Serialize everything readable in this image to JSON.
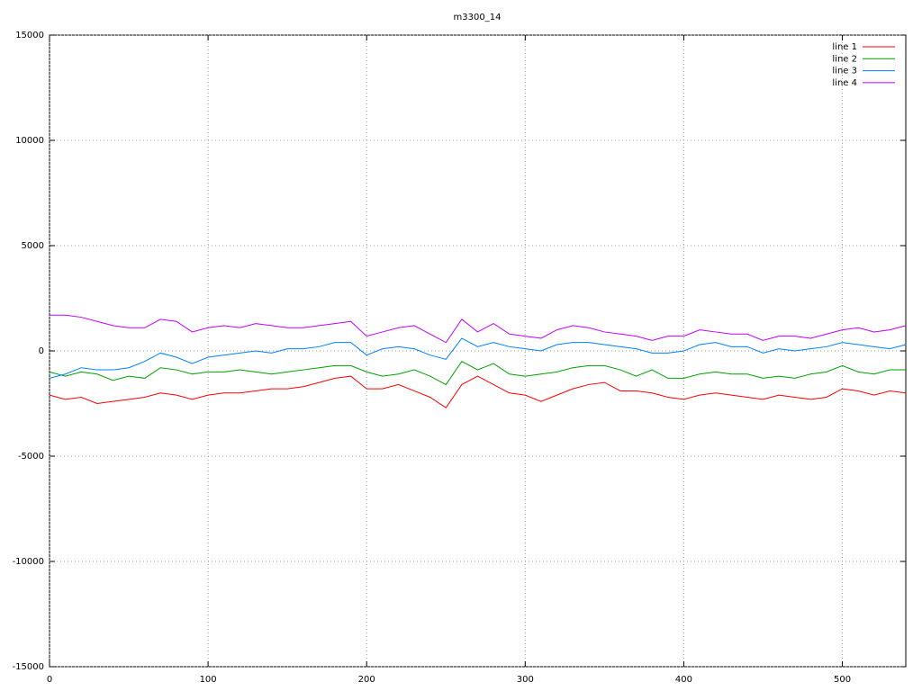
{
  "chart_data": {
    "type": "line",
    "title": "m3300_14",
    "x": [
      0,
      10,
      20,
      30,
      40,
      50,
      60,
      70,
      80,
      90,
      100,
      110,
      120,
      130,
      140,
      150,
      160,
      170,
      180,
      190,
      200,
      210,
      220,
      230,
      240,
      250,
      260,
      270,
      280,
      290,
      300,
      310,
      320,
      330,
      340,
      350,
      360,
      370,
      380,
      390,
      400,
      410,
      420,
      430,
      440,
      450,
      460,
      470,
      480,
      490,
      500,
      510,
      520,
      530,
      540
    ],
    "series": [
      {
        "name": "line 1",
        "color": "#ff0000",
        "values": [
          -2100,
          -2300,
          -2200,
          -2500,
          -2400,
          -2300,
          -2200,
          -2000,
          -2100,
          -2300,
          -2100,
          -2000,
          -2000,
          -1900,
          -1800,
          -1800,
          -1700,
          -1500,
          -1300,
          -1200,
          -1800,
          -1800,
          -1600,
          -1900,
          -2200,
          -2700,
          -1600,
          -1200,
          -1600,
          -2000,
          -2100,
          -2400,
          -2100,
          -1800,
          -1600,
          -1500,
          -1900,
          -1900,
          -2000,
          -2200,
          -2300,
          -2100,
          -2000,
          -2100,
          -2200,
          -2300,
          -2100,
          -2200,
          -2300,
          -2200,
          -1800,
          -1900,
          -2100,
          -1900,
          -2000
        ]
      },
      {
        "name": "line 2",
        "color": "#00a000",
        "values": [
          -1000,
          -1200,
          -1000,
          -1100,
          -1400,
          -1200,
          -1300,
          -800,
          -900,
          -1100,
          -1000,
          -1000,
          -900,
          -1000,
          -1100,
          -1000,
          -900,
          -800,
          -700,
          -700,
          -1000,
          -1200,
          -1100,
          -900,
          -1200,
          -1600,
          -500,
          -900,
          -600,
          -1100,
          -1200,
          -1100,
          -1000,
          -800,
          -700,
          -700,
          -900,
          -1200,
          -900,
          -1300,
          -1300,
          -1100,
          -1000,
          -1100,
          -1100,
          -1300,
          -1200,
          -1300,
          -1100,
          -1000,
          -700,
          -1000,
          -1100,
          -900,
          -900
        ]
      },
      {
        "name": "line 3",
        "color": "#0080ff",
        "values": [
          -1300,
          -1100,
          -800,
          -900,
          -900,
          -800,
          -500,
          -100,
          -300,
          -600,
          -300,
          -200,
          -100,
          0,
          -100,
          100,
          100,
          200,
          400,
          400,
          -200,
          100,
          200,
          100,
          -200,
          -400,
          600,
          200,
          400,
          200,
          100,
          0,
          300,
          400,
          400,
          300,
          200,
          100,
          -100,
          -100,
          0,
          300,
          400,
          200,
          200,
          -100,
          100,
          0,
          100,
          200,
          400,
          300,
          200,
          100,
          300
        ]
      },
      {
        "name": "line 4",
        "color": "#c000ff",
        "values": [
          1700,
          1700,
          1600,
          1400,
          1200,
          1100,
          1100,
          1500,
          1400,
          900,
          1100,
          1200,
          1100,
          1300,
          1200,
          1100,
          1100,
          1200,
          1300,
          1400,
          700,
          900,
          1100,
          1200,
          800,
          400,
          1500,
          900,
          1300,
          800,
          700,
          600,
          1000,
          1200,
          1100,
          900,
          800,
          700,
          500,
          700,
          700,
          1000,
          900,
          800,
          800,
          500,
          700,
          700,
          600,
          800,
          1000,
          1100,
          900,
          1000,
          1200
        ]
      }
    ],
    "xlim": [
      0,
      540
    ],
    "xticks": [
      0,
      100,
      200,
      300,
      400,
      500
    ],
    "ylim": [
      -15000,
      15000
    ],
    "yticks": [
      -15000,
      -10000,
      -5000,
      0,
      5000,
      10000,
      15000
    ],
    "grid": true,
    "legend": "top-right"
  }
}
